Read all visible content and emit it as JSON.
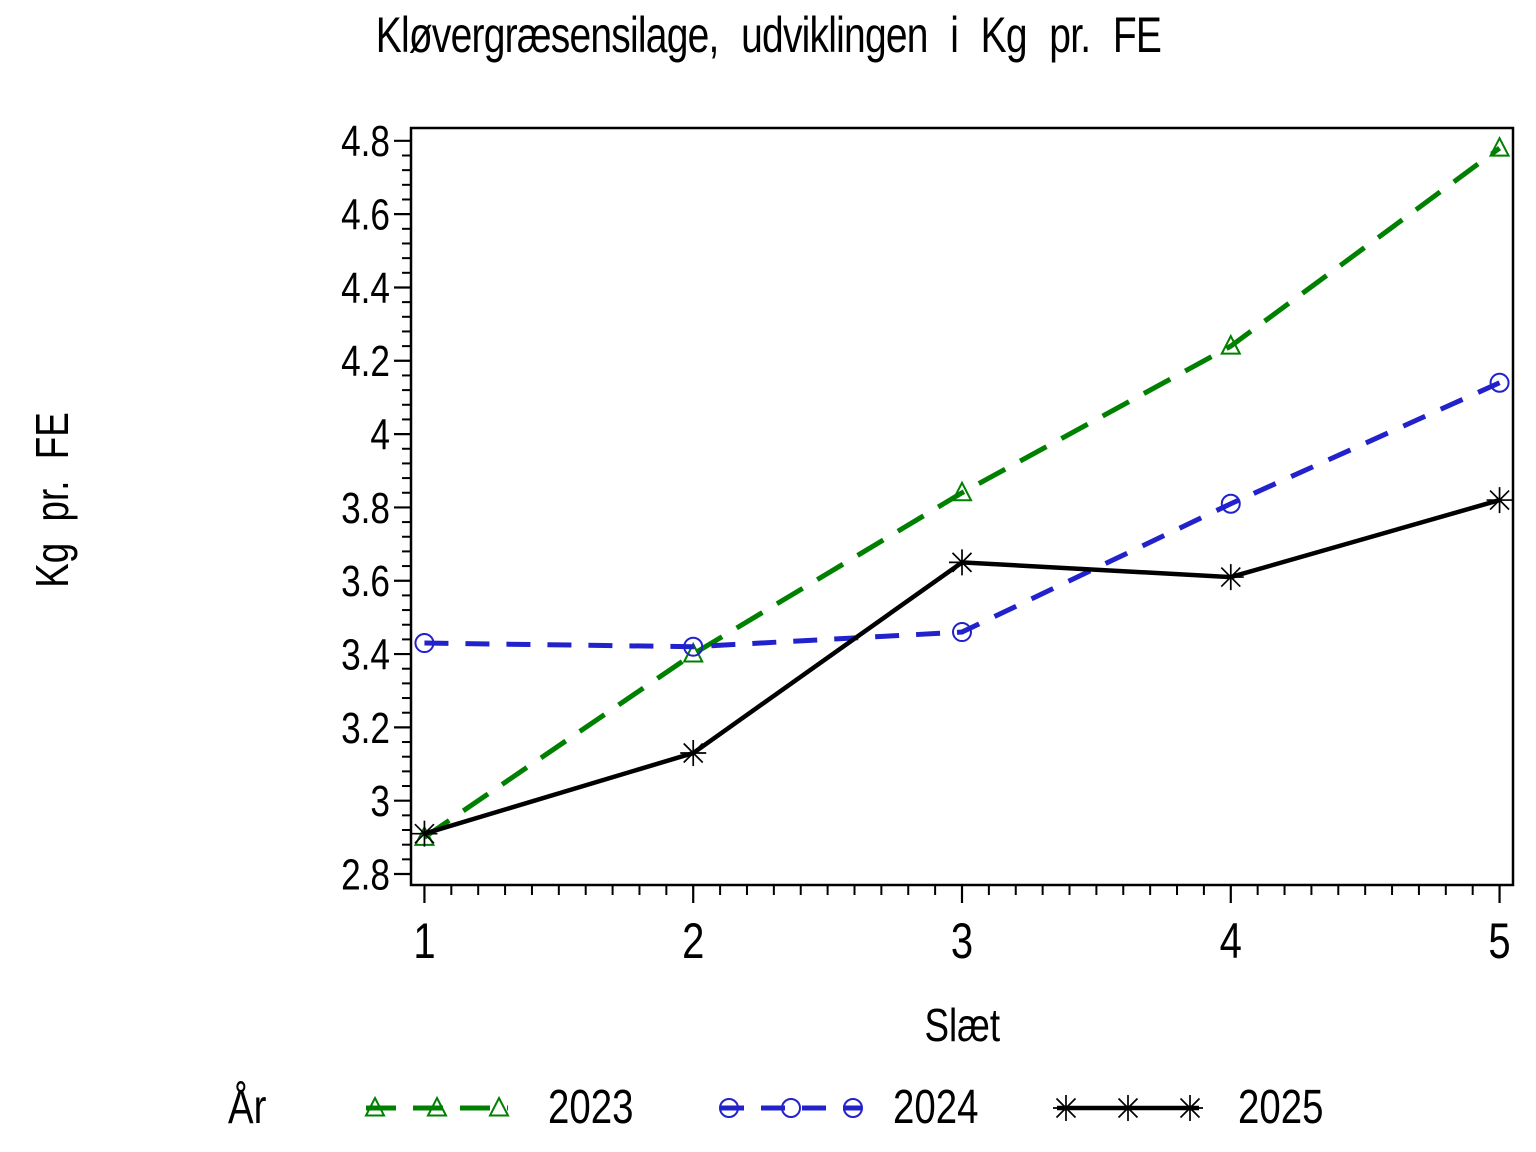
{
  "chart_data": {
    "type": "line",
    "title": "Kløvergræsensilage, udviklingen i Kg pr. FE",
    "xlabel": "Slæt",
    "ylabel": "Kg pr. FE",
    "legend_title": "År",
    "legend_position": "bottom",
    "grid": false,
    "x": [
      1,
      2,
      3,
      4,
      5
    ],
    "xlim": [
      0.95,
      5.05
    ],
    "ylim": [
      2.77,
      4.835
    ],
    "x_tick_labels": [
      "1",
      "2",
      "3",
      "4",
      "5"
    ],
    "x_major_ticks": [
      1,
      2,
      3,
      4,
      5
    ],
    "x_minor_step": 0.1,
    "y_major_ticks": [
      2.8,
      3.0,
      3.2,
      3.4,
      3.6,
      3.8,
      4.0,
      4.2,
      4.4,
      4.6,
      4.8
    ],
    "y_tick_labels": [
      "2.8",
      "3",
      "3.2",
      "3.4",
      "3.6",
      "3.8",
      "4",
      "4.2",
      "4.4",
      "4.6",
      "4.8"
    ],
    "y_minor_step": 0.04,
    "series": [
      {
        "name": "2023",
        "color": "#008000",
        "line_style": "dashed",
        "marker": "triangle",
        "values": [
          2.9,
          3.4,
          3.84,
          4.24,
          4.78
        ]
      },
      {
        "name": "2024",
        "color": "#2222cc",
        "line_style": "dashed",
        "marker": "circle",
        "values": [
          3.43,
          3.42,
          3.46,
          3.81,
          4.14
        ]
      },
      {
        "name": "2025",
        "color": "#000000",
        "line_style": "solid",
        "marker": "star",
        "values": [
          2.91,
          3.13,
          3.65,
          3.61,
          3.82
        ]
      }
    ],
    "frame_color": "#000000"
  }
}
